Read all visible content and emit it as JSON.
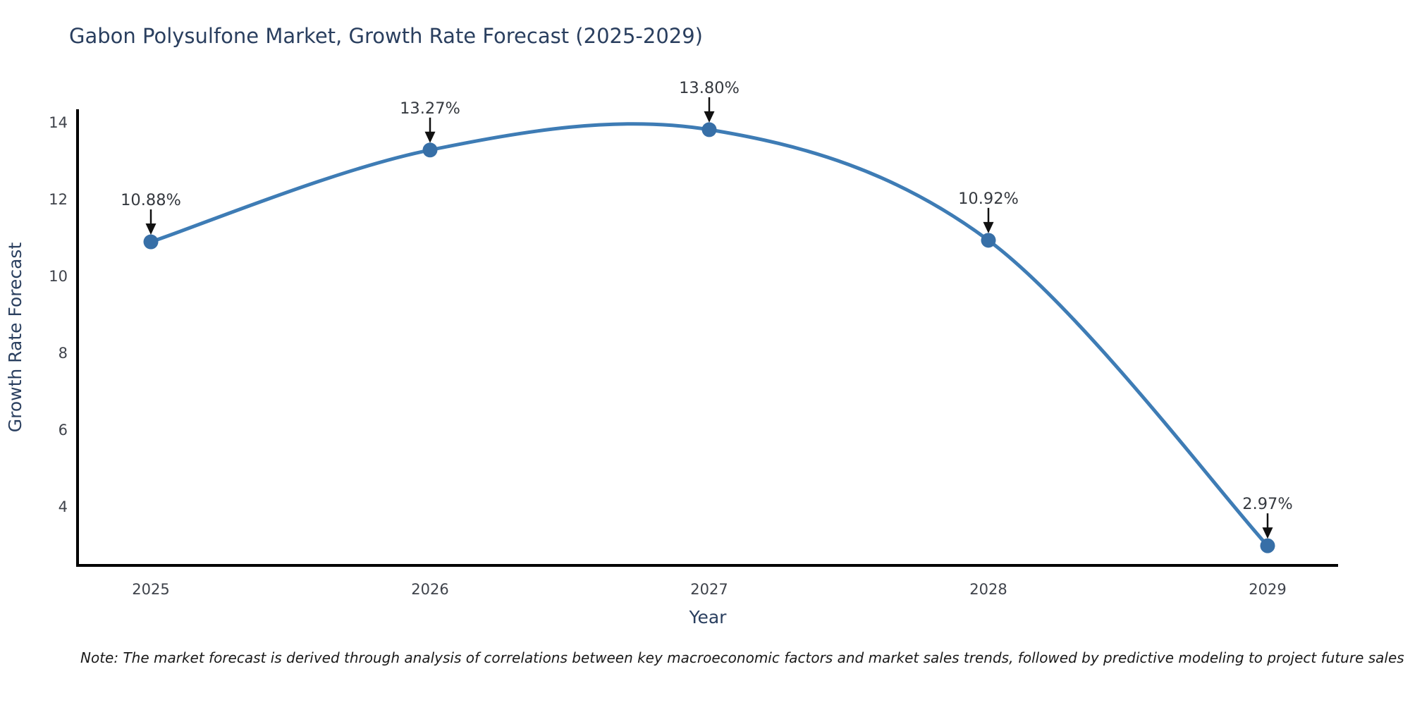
{
  "title": "Gabon Polysulfone Market, Growth Rate Forecast (2025-2029)",
  "note": "Note: The market forecast is derived through analysis of correlations between key macroeconomic factors and market sales trends, followed by predictive modeling to project future sales",
  "colors": {
    "title_text": "#2a3f5f",
    "axis_title_text": "#2a3f5f",
    "tick_text": "#3f434b",
    "annotation_text": "#35393f",
    "axis_line": "#000000",
    "arrow": "#111111",
    "line": "#3e7cb5",
    "marker": "#376fa7",
    "background": "#ffffff"
  },
  "chart_data": {
    "type": "line",
    "title": "Gabon Polysulfone Market, Growth Rate Forecast (2025-2029)",
    "x": [
      2025,
      2026,
      2027,
      2028,
      2029
    ],
    "values": [
      10.88,
      13.27,
      13.8,
      10.92,
      2.97
    ],
    "point_labels": [
      "10.88%",
      "13.27%",
      "13.80%",
      "10.92%",
      "2.97%"
    ],
    "xlabel": "Year",
    "ylabel": "Growth Rate Forecast",
    "xticks": [
      "2025",
      "2026",
      "2027",
      "2028",
      "2029"
    ],
    "yticks": [
      4,
      6,
      8,
      10,
      12,
      14
    ],
    "ylim": [
      2.46,
      14.33
    ],
    "grid": false,
    "legend": "none",
    "curve": "spline",
    "annotation_style": "label-with-down-arrow"
  }
}
